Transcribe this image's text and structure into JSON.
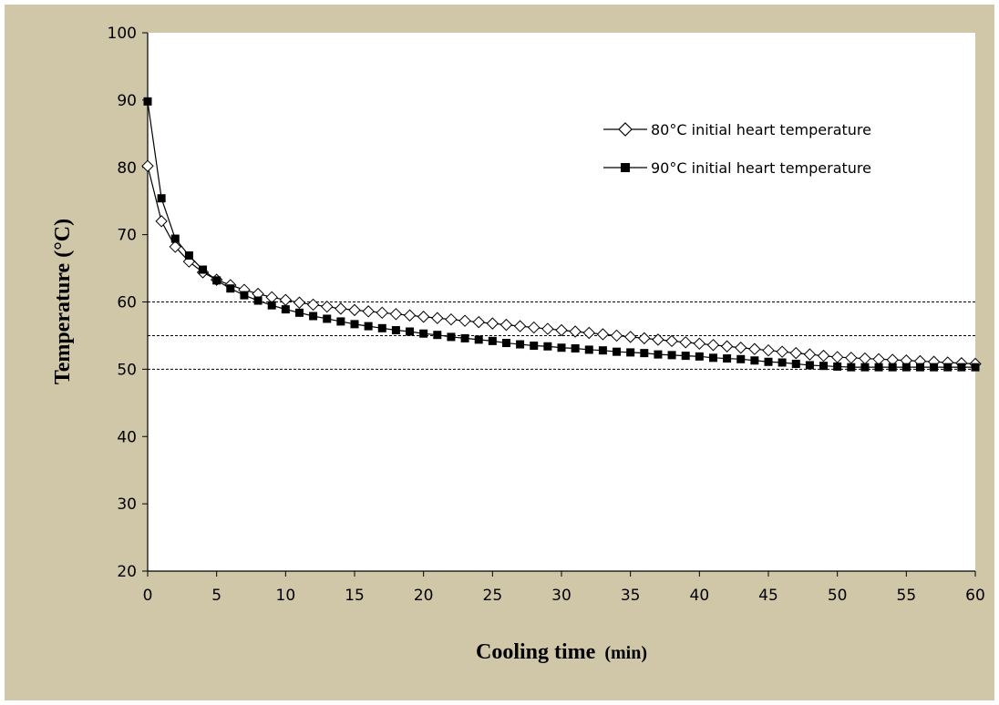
{
  "chart_data": {
    "type": "line",
    "title": "",
    "xlabel": "Cooling time",
    "xlabel_unit": "(min)",
    "ylabel": "Temperature (°C)",
    "xlim": [
      0,
      60
    ],
    "ylim": [
      20,
      100
    ],
    "x_ticks": [
      0,
      5,
      10,
      15,
      20,
      25,
      30,
      35,
      40,
      45,
      50,
      55,
      60
    ],
    "y_ticks": [
      20,
      30,
      40,
      50,
      60,
      70,
      80,
      90,
      100
    ],
    "grid": false,
    "legend_position": "top-right",
    "reference_lines": [
      60,
      55,
      50
    ],
    "x": [
      0,
      1,
      2,
      3,
      4,
      5,
      6,
      7,
      8,
      9,
      10,
      11,
      12,
      13,
      14,
      15,
      16,
      17,
      18,
      19,
      20,
      21,
      22,
      23,
      24,
      25,
      26,
      27,
      28,
      29,
      30,
      31,
      32,
      33,
      34,
      35,
      36,
      37,
      38,
      39,
      40,
      41,
      42,
      43,
      44,
      45,
      46,
      47,
      48,
      49,
      50,
      51,
      52,
      53,
      54,
      55,
      56,
      57,
      58,
      59,
      60
    ],
    "series": [
      {
        "name": "80°C initial heart temperature",
        "marker": "open-diamond",
        "color": "#000000",
        "values": [
          80.2,
          72.0,
          68.2,
          66.0,
          64.4,
          63.3,
          62.5,
          61.8,
          61.2,
          60.7,
          60.3,
          59.9,
          59.6,
          59.3,
          59.0,
          58.8,
          58.6,
          58.4,
          58.2,
          58.0,
          57.8,
          57.6,
          57.4,
          57.2,
          57.0,
          56.8,
          56.6,
          56.4,
          56.2,
          56.0,
          55.8,
          55.6,
          55.4,
          55.2,
          55.0,
          54.8,
          54.6,
          54.4,
          54.2,
          54.0,
          53.8,
          53.6,
          53.4,
          53.2,
          53.0,
          52.8,
          52.6,
          52.4,
          52.2,
          52.0,
          51.8,
          51.7,
          51.6,
          51.5,
          51.4,
          51.3,
          51.2,
          51.1,
          51.0,
          50.9,
          50.8
        ]
      },
      {
        "name": "90°C initial heart temperature",
        "marker": "filled-square",
        "color": "#000000",
        "values": [
          89.8,
          75.4,
          69.4,
          66.9,
          64.8,
          63.2,
          62.0,
          61.0,
          60.2,
          59.5,
          58.9,
          58.4,
          57.9,
          57.5,
          57.1,
          56.7,
          56.4,
          56.1,
          55.8,
          55.6,
          55.3,
          55.1,
          54.8,
          54.6,
          54.4,
          54.2,
          53.9,
          53.7,
          53.5,
          53.4,
          53.2,
          53.1,
          52.9,
          52.8,
          52.6,
          52.5,
          52.4,
          52.2,
          52.1,
          52.0,
          51.9,
          51.7,
          51.6,
          51.5,
          51.3,
          51.1,
          51.0,
          50.8,
          50.6,
          50.5,
          50.4,
          50.3,
          50.3,
          50.3,
          50.3,
          50.3,
          50.3,
          50.3,
          50.3,
          50.3,
          50.3
        ]
      }
    ]
  }
}
